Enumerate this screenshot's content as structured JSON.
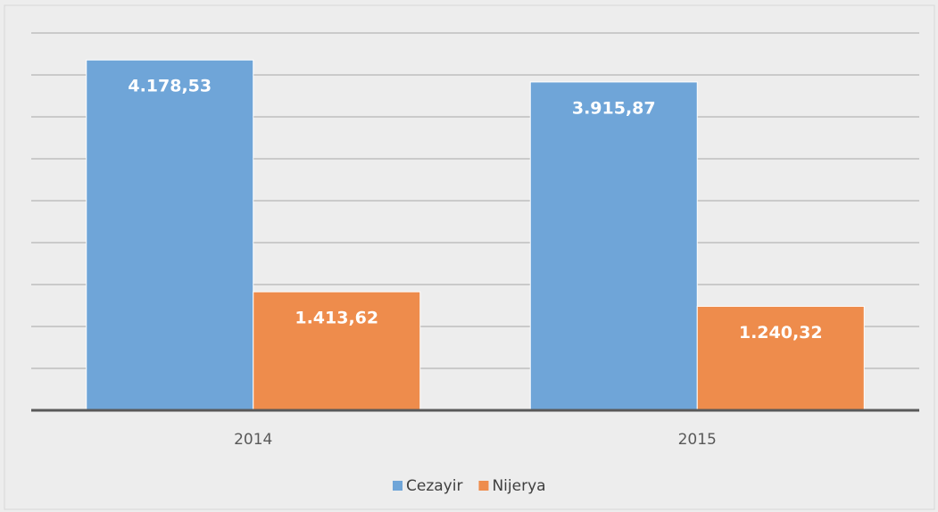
{
  "chart_data": {
    "type": "bar",
    "categories": [
      "2014",
      "2015"
    ],
    "series": [
      {
        "name": "Cezayir",
        "color": "#6fa5d8",
        "values": [
          4178.53,
          3915.87
        ],
        "value_labels": [
          "4.178,53",
          "3.915,87"
        ]
      },
      {
        "name": "Nijerya",
        "color": "#ee8c4c",
        "values": [
          1413.62,
          1240.32
        ],
        "value_labels": [
          "1.413,62",
          "1.240,32"
        ]
      }
    ],
    "ylim": [
      0,
      4500
    ],
    "yticks": [
      0,
      500,
      1000,
      1500,
      2000,
      2500,
      3000,
      3500,
      4000,
      4500
    ],
    "grid": true,
    "legend": "bottom"
  }
}
